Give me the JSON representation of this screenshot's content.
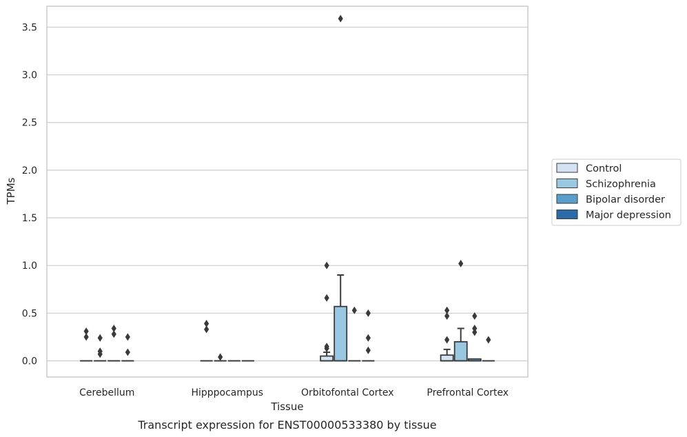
{
  "caption": "Transcript expression for ENST00000533380 by tissue",
  "chart_data": {
    "type": "box",
    "xlabel": "Tissue",
    "ylabel": "TPMs",
    "ylim": [
      -0.17,
      3.72
    ],
    "yticks": [
      0.0,
      0.5,
      1.0,
      1.5,
      2.0,
      2.5,
      3.0,
      3.5
    ],
    "ytick_labels": [
      "0.0",
      "0.5",
      "1.0",
      "1.5",
      "2.0",
      "2.5",
      "3.0",
      "3.5"
    ],
    "grid": "horizontal",
    "legend_position": "right",
    "categories": [
      "Cerebellum",
      "Hipppocampus",
      "Orbitofontal Cortex",
      "Prefrontal Cortex"
    ],
    "series": [
      {
        "name": "Control",
        "color": "#d3e3f3",
        "boxes": [
          {
            "q1": 0,
            "median": 0,
            "q3": 0,
            "whisker_low": 0,
            "whisker_high": 0,
            "outliers": [
              0.31,
              0.25
            ]
          },
          {
            "q1": 0,
            "median": 0,
            "q3": 0,
            "whisker_low": 0,
            "whisker_high": 0,
            "outliers": [
              0.39,
              0.33
            ]
          },
          {
            "q1": 0,
            "median": 0,
            "q3": 0.05,
            "whisker_low": 0,
            "whisker_high": 0.09,
            "outliers": [
              1.0,
              0.66,
              0.15,
              0.13
            ]
          },
          {
            "q1": 0,
            "median": 0,
            "q3": 0.06,
            "whisker_low": 0,
            "whisker_high": 0.12,
            "outliers": [
              0.53,
              0.47,
              0.22
            ]
          }
        ]
      },
      {
        "name": "Schizophrenia",
        "color": "#9ac8e0",
        "boxes": [
          {
            "q1": 0,
            "median": 0,
            "q3": 0,
            "whisker_low": 0,
            "whisker_high": 0,
            "outliers": [
              0.24,
              0.1,
              0.07
            ]
          },
          {
            "q1": 0,
            "median": 0,
            "q3": 0,
            "whisker_low": 0,
            "whisker_high": 0,
            "outliers": [
              0.04
            ]
          },
          {
            "q1": 0,
            "median": 0,
            "q3": 0.57,
            "whisker_low": 0,
            "whisker_high": 0.9,
            "outliers": [
              3.59
            ]
          },
          {
            "q1": 0,
            "median": 0,
            "q3": 0.2,
            "whisker_low": 0,
            "whisker_high": 0.34,
            "outliers": [
              1.02
            ]
          }
        ]
      },
      {
        "name": "Bipolar disorder",
        "color": "#5a9ecc",
        "boxes": [
          {
            "q1": 0,
            "median": 0,
            "q3": 0,
            "whisker_low": 0,
            "whisker_high": 0,
            "outliers": [
              0.34,
              0.28
            ]
          },
          {
            "q1": 0,
            "median": 0,
            "q3": 0,
            "whisker_low": 0,
            "whisker_high": 0,
            "outliers": []
          },
          {
            "q1": 0,
            "median": 0,
            "q3": 0,
            "whisker_low": 0,
            "whisker_high": 0,
            "outliers": [
              0.53
            ]
          },
          {
            "q1": 0,
            "median": 0,
            "q3": 0.02,
            "whisker_low": 0,
            "whisker_high": 0.02,
            "outliers": [
              0.47,
              0.34,
              0.3
            ]
          }
        ]
      },
      {
        "name": "Major depression",
        "color": "#2b6ca8",
        "boxes": [
          {
            "q1": 0,
            "median": 0,
            "q3": 0,
            "whisker_low": 0,
            "whisker_high": 0,
            "outliers": [
              0.25,
              0.09
            ]
          },
          {
            "q1": 0,
            "median": 0,
            "q3": 0,
            "whisker_low": 0,
            "whisker_high": 0,
            "outliers": []
          },
          {
            "q1": 0,
            "median": 0,
            "q3": 0,
            "whisker_low": 0,
            "whisker_high": 0,
            "outliers": [
              0.5,
              0.24,
              0.11
            ]
          },
          {
            "q1": 0,
            "median": 0,
            "q3": 0,
            "whisker_low": 0,
            "whisker_high": 0,
            "outliers": [
              0.22
            ]
          }
        ]
      }
    ]
  }
}
